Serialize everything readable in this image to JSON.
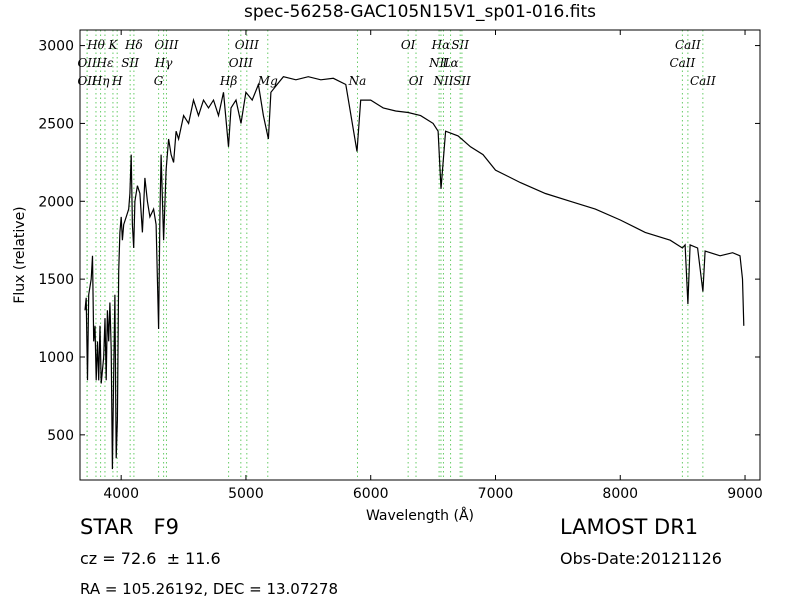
{
  "chart_data": {
    "type": "line",
    "title": "spec-56258-GAC105N15V1_sp01-016.fits",
    "x_label": "Wavelength (Å)",
    "y_label": "Flux (relative)",
    "xlim": [
      3670,
      9120
    ],
    "ylim": [
      210,
      3100
    ],
    "xticks": [
      4000,
      5000,
      6000,
      7000,
      8000,
      9000
    ],
    "yticks": [
      500,
      1000,
      1500,
      2000,
      2500,
      3000
    ],
    "line_color": "#000000",
    "marker_color": "#66cc66",
    "x": [
      3710,
      3720,
      3730,
      3740,
      3760,
      3770,
      3780,
      3790,
      3800,
      3810,
      3820,
      3830,
      3840,
      3860,
      3870,
      3880,
      3890,
      3900,
      3910,
      3920,
      3930,
      3940,
      3950,
      3960,
      3970,
      3980,
      3990,
      4000,
      4010,
      4020,
      4040,
      4060,
      4070,
      4080,
      4090,
      4100,
      4110,
      4130,
      4150,
      4170,
      4190,
      4210,
      4230,
      4260,
      4280,
      4300,
      4310,
      4320,
      4340,
      4360,
      4380,
      4400,
      4420,
      4440,
      4460,
      4500,
      4540,
      4580,
      4620,
      4660,
      4700,
      4740,
      4780,
      4820,
      4860,
      4880,
      4920,
      4960,
      5000,
      5050,
      5100,
      5140,
      5180,
      5200,
      5250,
      5300,
      5400,
      5500,
      5600,
      5700,
      5800,
      5890,
      5920,
      6000,
      6100,
      6200,
      6300,
      6400,
      6500,
      6540,
      6563,
      6600,
      6700,
      6800,
      6900,
      7000,
      7200,
      7400,
      7600,
      7800,
      8000,
      8200,
      8400,
      8498,
      8520,
      8542,
      8560,
      8620,
      8662,
      8680,
      8800,
      8900,
      8960,
      8980,
      8990
    ],
    "values": [
      1300,
      1380,
      850,
      1400,
      1500,
      1650,
      1100,
      1200,
      850,
      1100,
      850,
      1200,
      830,
      1000,
      1250,
      850,
      1300,
      1100,
      1350,
      1050,
      280,
      900,
      1400,
      350,
      600,
      1550,
      1800,
      1900,
      1750,
      1850,
      1900,
      1950,
      2050,
      2300,
      1850,
      1700,
      2000,
      2100,
      2050,
      1800,
      2150,
      2000,
      1900,
      1950,
      1850,
      1180,
      1900,
      2300,
      1750,
      2200,
      2400,
      2300,
      2250,
      2450,
      2400,
      2550,
      2500,
      2650,
      2550,
      2650,
      2600,
      2650,
      2550,
      2700,
      2350,
      2600,
      2650,
      2500,
      2700,
      2650,
      2750,
      2550,
      2400,
      2700,
      2750,
      2800,
      2780,
      2800,
      2780,
      2790,
      2750,
      2320,
      2650,
      2650,
      2600,
      2580,
      2570,
      2550,
      2500,
      2450,
      2080,
      2450,
      2420,
      2350,
      2300,
      2200,
      2120,
      2050,
      2000,
      1950,
      1880,
      1800,
      1750,
      1700,
      1720,
      1340,
      1720,
      1700,
      1420,
      1680,
      1650,
      1670,
      1650,
      1500,
      1200
    ],
    "spectral_lines": [
      [
        {
          "label": "Hθ",
          "wavelength": 3798
        },
        {
          "label": "K",
          "wavelength": 3934
        },
        {
          "label": "Hδ",
          "wavelength": 4102
        },
        {
          "label": "OIII",
          "wavelength": 4363
        },
        {
          "label": "OIII",
          "wavelength": 5007
        },
        {
          "label": "OI",
          "wavelength": 6300
        },
        {
          "label": "Hα",
          "wavelength": 6563
        },
        {
          "label": "SII",
          "wavelength": 6717
        },
        {
          "label": "CaII",
          "wavelength": 8542
        }
      ],
      [
        {
          "label": "OII",
          "wavelength": 3727
        },
        {
          "label": "Hε",
          "wavelength": 3870
        },
        {
          "label": "SII",
          "wavelength": 4072
        },
        {
          "label": "Hγ",
          "wavelength": 4340
        },
        {
          "label": "OIII",
          "wavelength": 4959
        },
        {
          "label": "NII",
          "wavelength": 6548
        },
        {
          "label": "Lα",
          "wavelength": 6640
        },
        {
          "label": "CaII",
          "wavelength": 8498
        }
      ],
      [
        {
          "label": "OII",
          "wavelength": 3727
        },
        {
          "label": "Hη",
          "wavelength": 3835
        },
        {
          "label": "H",
          "wavelength": 3968
        },
        {
          "label": "G",
          "wavelength": 4300
        },
        {
          "label": "Hβ",
          "wavelength": 4861
        },
        {
          "label": "Mg",
          "wavelength": 5175
        },
        {
          "label": "Na",
          "wavelength": 5894
        },
        {
          "label": "OI",
          "wavelength": 6363
        },
        {
          "label": "NII",
          "wavelength": 6583
        },
        {
          "label": "SII",
          "wavelength": 6731
        },
        {
          "label": "CaII",
          "wavelength": 8662
        }
      ]
    ]
  },
  "info": {
    "object": "STAR   F9",
    "cz": "cz = 72.6  ± 11.6",
    "coords": "RA = 105.26192, DEC = 13.07278",
    "survey": "LAMOST DR1",
    "obs_date": "Obs-Date:20121126"
  }
}
